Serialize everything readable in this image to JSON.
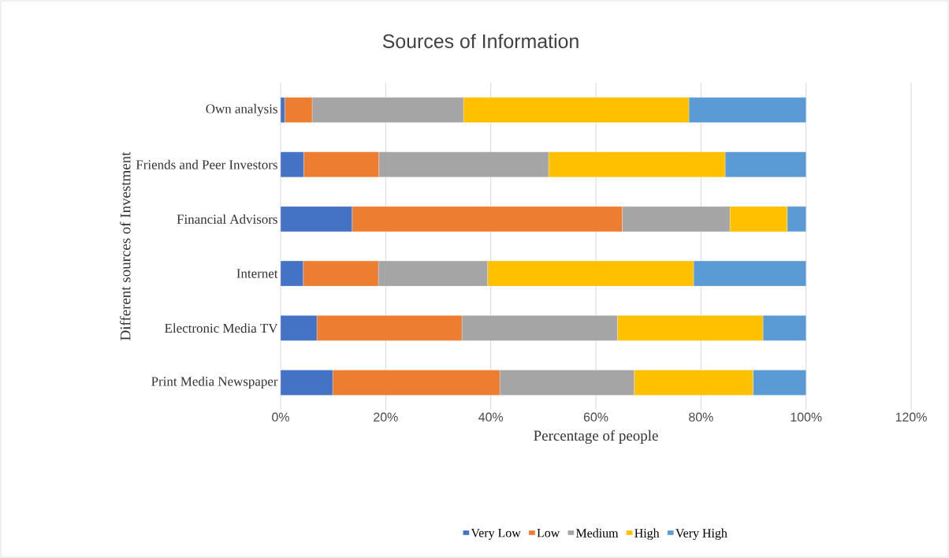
{
  "chart_data": {
    "type": "bar",
    "orientation": "horizontal",
    "stacked": true,
    "title": "Sources of Information",
    "xlabel": "Percentage of people",
    "ylabel": "Different sources of Investment",
    "categories": [
      "Own analysis",
      "Friends and Peer Investors",
      "Financial Advisors",
      "Internet",
      "Electronic Media TV",
      "Print Media Newspaper"
    ],
    "series": [
      {
        "name": "Very Low",
        "color": "#4472c4",
        "values": [
          0.8,
          4.4,
          13.6,
          4.3,
          6.9,
          9.9
        ]
      },
      {
        "name": "Low",
        "color": "#ed7d31",
        "values": [
          5.2,
          14.3,
          51.4,
          14.3,
          27.6,
          31.8
        ]
      },
      {
        "name": "Medium",
        "color": "#a5a5a5",
        "values": [
          28.8,
          32.3,
          20.5,
          20.8,
          29.6,
          25.6
        ]
      },
      {
        "name": "High",
        "color": "#ffc000",
        "values": [
          42.9,
          33.6,
          10.9,
          39.2,
          27.7,
          22.6
        ]
      },
      {
        "name": "Very High",
        "color": "#5b9bd5",
        "values": [
          22.3,
          15.4,
          3.6,
          21.4,
          8.2,
          10.1
        ]
      }
    ],
    "xlim": [
      0,
      120
    ],
    "xticks": [
      {
        "value": 0,
        "label": "0%"
      },
      {
        "value": 20,
        "label": "20%"
      },
      {
        "value": 40,
        "label": "40%"
      },
      {
        "value": 60,
        "label": "60%"
      },
      {
        "value": 80,
        "label": "80%"
      },
      {
        "value": 100,
        "label": "100%"
      },
      {
        "value": 120,
        "label": "120%"
      }
    ],
    "grid": "x",
    "legend": "bottom"
  }
}
